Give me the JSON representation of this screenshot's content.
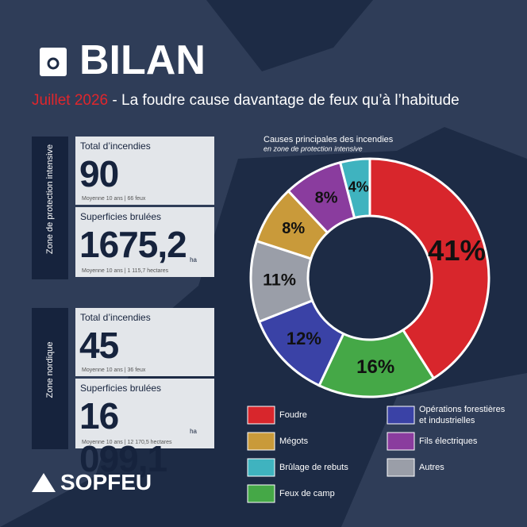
{
  "header": {
    "title": "BILAN",
    "month": "Juillet 2026",
    "headline": "- La foudre cause davantage de feux qu’à l’habitude"
  },
  "zones": [
    {
      "name": "Zone de protection intensive",
      "fires_label": "Total d’incendies",
      "fires": "90",
      "fires_avg": "Moyenne 10 ans | 66 feux",
      "area_label": "Superficies brulées",
      "area": "1675,2",
      "area_unit": "ha",
      "area_avg": "Moyenne 10 ans | 1 115,7 hectares"
    },
    {
      "name": "Zone nordique",
      "fires_label": "Total d’incendies",
      "fires": "45",
      "fires_avg": "Moyenne 10 ans | 36 feux",
      "area_label": "Superficies brulées",
      "area": "16 099,1",
      "area_unit": "ha",
      "area_avg": "Moyenne 10 ans | 12 170,5 hectares"
    }
  ],
  "logo": "SOPFEU",
  "chart_data": {
    "type": "donut",
    "title": "Causes principales des incendies",
    "subtitle": "en zone de protection intensive",
    "categories": [
      "Foudre",
      "Feux de camp",
      "Opérations forestières et industrielles",
      "Autres",
      "Mégots",
      "Fils électriques",
      "Brûlage de rebuts"
    ],
    "values": [
      41,
      16,
      12,
      11,
      8,
      8,
      4
    ],
    "value_labels": [
      "41%",
      "16%",
      "12%",
      "11%",
      "8%",
      "8%",
      "4%"
    ],
    "colors": [
      "#d8262c",
      "#45a847",
      "#3a42a6",
      "#9a9ea8",
      "#c99a3a",
      "#8a3c9e",
      "#3fb3bf"
    ]
  }
}
